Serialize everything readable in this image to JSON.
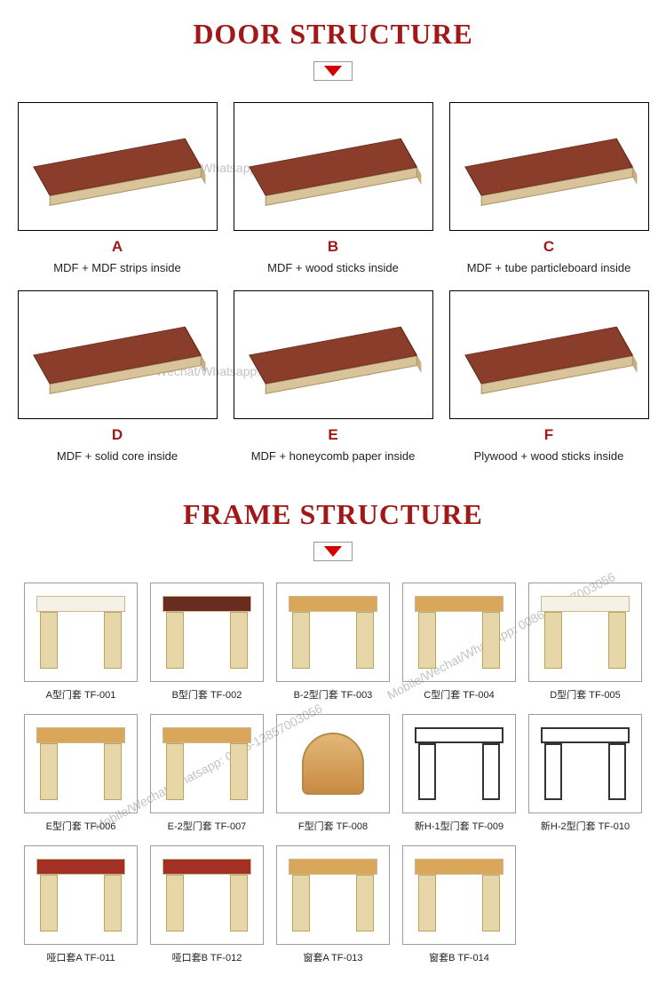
{
  "colors": {
    "title": "#a01818",
    "triangle": "#d40000",
    "text": "#222222",
    "border_dark": "#000000",
    "border_light": "#9d9d9d",
    "bg": "#ffffff"
  },
  "watermark_text": "Mobile/Wechat/Whatsapp: 0086-13857003056",
  "door_section": {
    "title": "DOOR STRUCTURE",
    "items": [
      {
        "letter": "A",
        "description": "MDF + MDF strips inside",
        "top_color": "#8a3d2a"
      },
      {
        "letter": "B",
        "description": "MDF + wood sticks inside",
        "top_color": "#8a3d2a"
      },
      {
        "letter": "C",
        "description": "MDF + tube particleboard inside",
        "top_color": "#8a3d2a"
      },
      {
        "letter": "D",
        "description": "MDF + solid core inside",
        "top_color": "#8a3d2a"
      },
      {
        "letter": "E",
        "description": "MDF + honeycomb paper inside",
        "top_color": "#8a3d2a"
      },
      {
        "letter": "F",
        "description": "Plywood + wood sticks inside",
        "top_color": "#8a3d2a"
      }
    ]
  },
  "frame_section": {
    "title": "FRAME STRUCTURE",
    "items": [
      {
        "label": "A型门套  TF-001",
        "style": "plain"
      },
      {
        "label": "B型门套  TF-002",
        "style": "dark"
      },
      {
        "label": "B-2型门套  TF-003",
        "style": "wood"
      },
      {
        "label": "C型门套  TF-004",
        "style": "wood"
      },
      {
        "label": "D型门套  TF-005",
        "style": "plain"
      },
      {
        "label": "E型门套  TF-006",
        "style": "wood"
      },
      {
        "label": "E-2型门套  TF-007",
        "style": "wood"
      },
      {
        "label": "F型门套  TF-008",
        "style": "round"
      },
      {
        "label": "新H-1型门套  TF-009",
        "style": "line"
      },
      {
        "label": "新H-2型门套  TF-010",
        "style": "line"
      },
      {
        "label": "哑口套A  TF-011",
        "style": "red"
      },
      {
        "label": "哑口套B  TF-012",
        "style": "red"
      },
      {
        "label": "窗套A  TF-013",
        "style": "wood"
      },
      {
        "label": "窗套B  TF-014",
        "style": "wood"
      }
    ]
  }
}
